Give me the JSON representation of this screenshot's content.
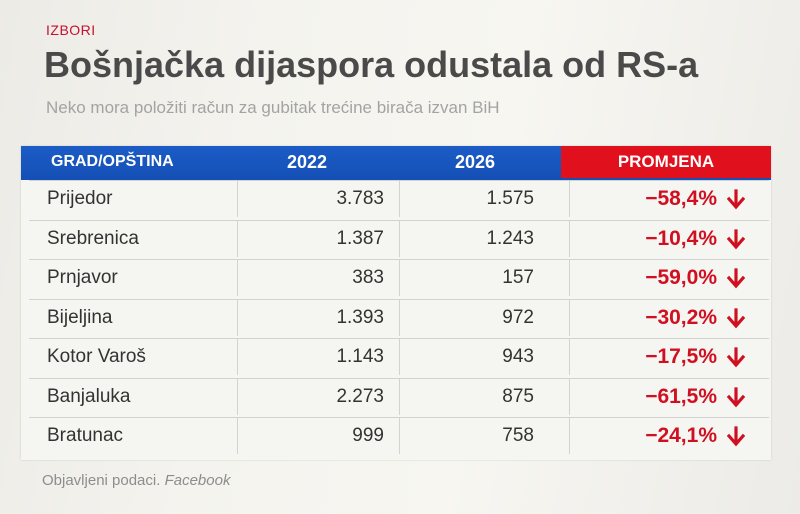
{
  "kicker": "IZBORI",
  "title": "Bošnjačka dijaspora odustala od RS-a",
  "subtitle": "Neko mora položiti račun za gubitak trećine birača izvan BiH",
  "table": {
    "headers": {
      "city": "GRAD/OPŠTINA",
      "y1": "2022",
      "y2": "2026",
      "change": "PROMJENA"
    },
    "rows": [
      {
        "city": "Prijedor",
        "y1": "3.783",
        "y2": "1.575",
        "change": "−58,4%"
      },
      {
        "city": "Srebrenica",
        "y1": "1.387",
        "y2": "1.243",
        "change": "−10,4%"
      },
      {
        "city": "Prnjavor",
        "y1": "383",
        "y2": "157",
        "change": "−59,0%"
      },
      {
        "city": "Bijeljina",
        "y1": "1.393",
        "y2": "972",
        "change": "−30,2%"
      },
      {
        "city": "Kotor Varoš",
        "y1": "1.143",
        "y2": "943",
        "change": "−17,5%"
      },
      {
        "city": "Banjaluka",
        "y1": "2.273",
        "y2": "875",
        "change": "−61,5%"
      },
      {
        "city": "Bratunac",
        "y1": "999",
        "y2": "758",
        "change": "−24,1%"
      }
    ],
    "arrow_icon": "down-arrow-icon",
    "accent_blue": "#1550b6",
    "accent_red": "#e0101c"
  },
  "footer": {
    "source_label": "Objavljeni podaci.",
    "source_name": "Facebook"
  }
}
